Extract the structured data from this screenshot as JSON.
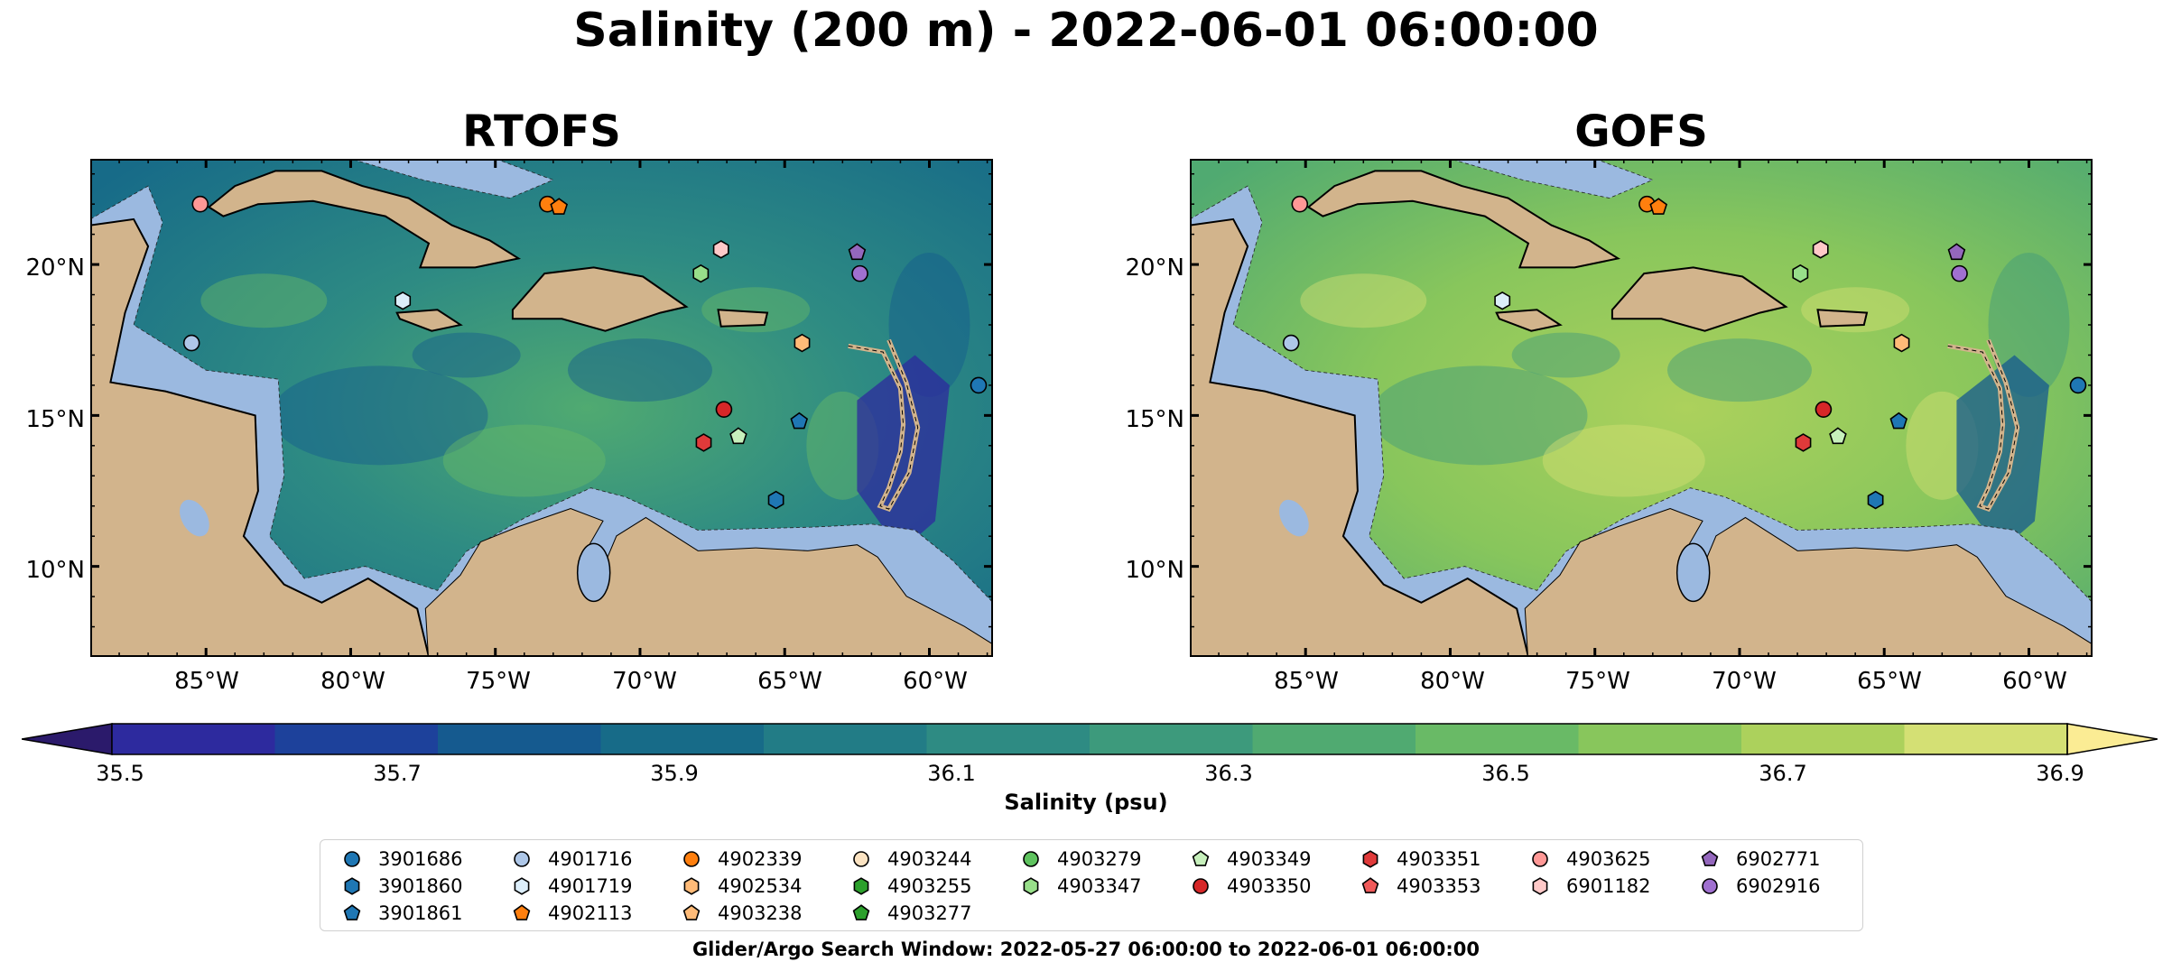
{
  "title": "Salinity (200 m) - 2022-06-01 06:00:00",
  "panels": [
    {
      "id": "rtofs",
      "title": "RTOFS"
    },
    {
      "id": "gofs",
      "title": "GOFS"
    }
  ],
  "lat_ticks": [
    "20°N",
    "15°N",
    "10°N"
  ],
  "lon_ticks": [
    "85°W",
    "80°W",
    "75°W",
    "70°W",
    "65°W",
    "60°W"
  ],
  "colorbar": {
    "label": "Salinity (psu)",
    "ticks": [
      "35.5",
      "35.7",
      "35.9",
      "36.1",
      "36.3",
      "36.5",
      "36.7",
      "36.9"
    ],
    "range": [
      35.5,
      36.9
    ],
    "colors": [
      "#2b1a6b",
      "#2d2a9e",
      "#1d419b",
      "#155a8f",
      "#176b88",
      "#227c86",
      "#2e8b83",
      "#3d9a7c",
      "#50aa71",
      "#69ba66",
      "#88c65c",
      "#acd15c",
      "#d4e074",
      "#fbec94"
    ]
  },
  "map_colors": {
    "land": "#d2b48c",
    "shelf": "#9bb9e0",
    "deep_rtofs": "#1f6a8e",
    "deep_gofs": "#6cbb6a"
  },
  "legend": {
    "columns": [
      [
        {
          "id": "3901686",
          "color": "#1f77b4",
          "marker": "circle"
        },
        {
          "id": "3901860",
          "color": "#1f77b4",
          "marker": "hexagon"
        },
        {
          "id": "3901861",
          "color": "#1f77b4",
          "marker": "pentagon"
        }
      ],
      [
        {
          "id": "4901716",
          "color": "#aec7e8",
          "marker": "circle"
        },
        {
          "id": "4901719",
          "color": "#dceefa",
          "marker": "hexagon"
        },
        {
          "id": "4902113",
          "color": "#ff7f0e",
          "marker": "pentagon"
        }
      ],
      [
        {
          "id": "4902339",
          "color": "#ff7f0e",
          "marker": "circle"
        },
        {
          "id": "4902534",
          "color": "#ffbb78",
          "marker": "hexagon"
        },
        {
          "id": "4903238",
          "color": "#ffbb78",
          "marker": "pentagon"
        }
      ],
      [
        {
          "id": "4903244",
          "color": "#fbe3c2",
          "marker": "circle"
        },
        {
          "id": "4903255",
          "color": "#2ca02c",
          "marker": "hexagon"
        },
        {
          "id": "4903277",
          "color": "#2ca02c",
          "marker": "pentagon"
        }
      ],
      [
        {
          "id": "4903279",
          "color": "#5fc35f",
          "marker": "circle"
        },
        {
          "id": "4903347",
          "color": "#98df8a",
          "marker": "hexagon"
        }
      ],
      [
        {
          "id": "4903349",
          "color": "#c7f0bc",
          "marker": "pentagon"
        },
        {
          "id": "4903350",
          "color": "#d62728",
          "marker": "circle"
        }
      ],
      [
        {
          "id": "4903351",
          "color": "#e03a3a",
          "marker": "hexagon"
        },
        {
          "id": "4903353",
          "color": "#f05a5a",
          "marker": "pentagon"
        }
      ],
      [
        {
          "id": "4903625",
          "color": "#ff9896",
          "marker": "circle"
        },
        {
          "id": "6901182",
          "color": "#ffc9c8",
          "marker": "hexagon"
        }
      ],
      [
        {
          "id": "6902771",
          "color": "#9467bd",
          "marker": "pentagon"
        },
        {
          "id": "6902916",
          "color": "#a070d0",
          "marker": "circle"
        }
      ]
    ]
  },
  "floats": [
    {
      "lon": -85.2,
      "lat": 22.0,
      "color": "#ff9896",
      "marker": "circle"
    },
    {
      "lon": -73.2,
      "lat": 22.0,
      "color": "#ff7f0e",
      "marker": "circle"
    },
    {
      "lon": -72.8,
      "lat": 21.9,
      "color": "#ff7f0e",
      "marker": "pentagon"
    },
    {
      "lon": -67.2,
      "lat": 20.5,
      "color": "#ffc9c8",
      "marker": "hexagon"
    },
    {
      "lon": -62.5,
      "lat": 20.4,
      "color": "#9467bd",
      "marker": "pentagon"
    },
    {
      "lon": -62.4,
      "lat": 19.7,
      "color": "#a070d0",
      "marker": "circle"
    },
    {
      "lon": -67.9,
      "lat": 19.7,
      "color": "#98df8a",
      "marker": "hexagon"
    },
    {
      "lon": -78.2,
      "lat": 18.8,
      "color": "#dceefa",
      "marker": "hexagon"
    },
    {
      "lon": -85.5,
      "lat": 17.4,
      "color": "#aec7e8",
      "marker": "circle"
    },
    {
      "lon": -64.4,
      "lat": 17.4,
      "color": "#ffbb78",
      "marker": "hexagon"
    },
    {
      "lon": -58.3,
      "lat": 16.0,
      "color": "#1f77b4",
      "marker": "circle"
    },
    {
      "lon": -67.1,
      "lat": 15.2,
      "color": "#d62728",
      "marker": "circle"
    },
    {
      "lon": -64.5,
      "lat": 14.8,
      "color": "#1f77b4",
      "marker": "pentagon"
    },
    {
      "lon": -66.6,
      "lat": 14.3,
      "color": "#c7f0bc",
      "marker": "pentagon"
    },
    {
      "lon": -67.8,
      "lat": 14.1,
      "color": "#e03a3a",
      "marker": "hexagon"
    },
    {
      "lon": -65.3,
      "lat": 12.2,
      "color": "#1f77b4",
      "marker": "hexagon"
    }
  ],
  "search_window": "Glider/Argo Search Window: 2022-05-27 06:00:00 to 2022-06-01 06:00:00"
}
